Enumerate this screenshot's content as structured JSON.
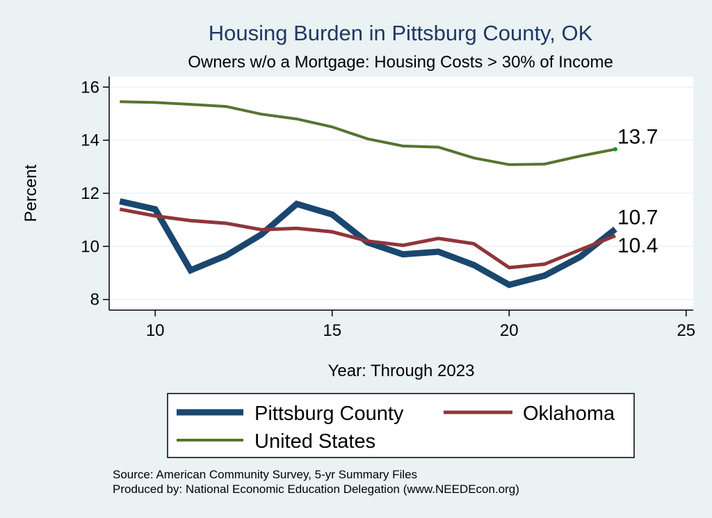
{
  "chart_data": {
    "type": "line",
    "title": "Housing Burden in Pittsburg County, OK",
    "subtitle": "Owners w/o a Mortgage: Housing Costs > 30% of Income",
    "xlabel": "Year: Through 2023",
    "ylabel": "Percent",
    "xlim": [
      8.7,
      25.2
    ],
    "ylim": [
      7.6,
      16.4
    ],
    "xticks": [
      10,
      15,
      20,
      25
    ],
    "yticks": [
      8,
      10,
      12,
      14,
      16
    ],
    "grid": true,
    "legend_position": "bottom",
    "x": [
      9,
      10,
      11,
      12,
      13,
      14,
      15,
      16,
      17,
      18,
      19,
      20,
      21,
      22,
      23
    ],
    "series": [
      {
        "name": "Pittsburg County",
        "color": "#1a476f",
        "width": 9,
        "values": [
          11.7,
          11.4,
          9.1,
          9.65,
          10.45,
          11.6,
          11.2,
          10.15,
          9.7,
          9.8,
          9.3,
          8.55,
          8.9,
          9.6,
          10.65
        ],
        "end_label": "10.7"
      },
      {
        "name": "Oklahoma",
        "color": "#90353b",
        "width": 5,
        "values": [
          11.4,
          11.15,
          10.97,
          10.87,
          10.63,
          10.68,
          10.55,
          10.2,
          10.04,
          10.3,
          10.1,
          9.2,
          9.33,
          9.87,
          10.4
        ],
        "end_label": "10.4"
      },
      {
        "name": "United States",
        "color": "#55752f",
        "width": 4,
        "values": [
          15.45,
          15.42,
          15.35,
          15.27,
          14.98,
          14.8,
          14.5,
          14.05,
          13.78,
          13.74,
          13.33,
          13.08,
          13.1,
          13.4,
          13.66
        ],
        "end_label": "13.7"
      }
    ],
    "legend": [
      {
        "label": "Pittsburg County",
        "series": 0
      },
      {
        "label": "Oklahoma",
        "series": 1
      },
      {
        "label": "United States",
        "series": 2
      }
    ],
    "source_note": "Source: American Community Survey, 5-yr Summary Files",
    "produced_note": "Produced by: National Economic Education Delegation (www.NEEDEcon.org)"
  },
  "colors": {
    "background": "#eaf2f3",
    "plot_background": "#ffffff",
    "title_color": "#1f3864",
    "grid_color": "#eaf2f3"
  }
}
